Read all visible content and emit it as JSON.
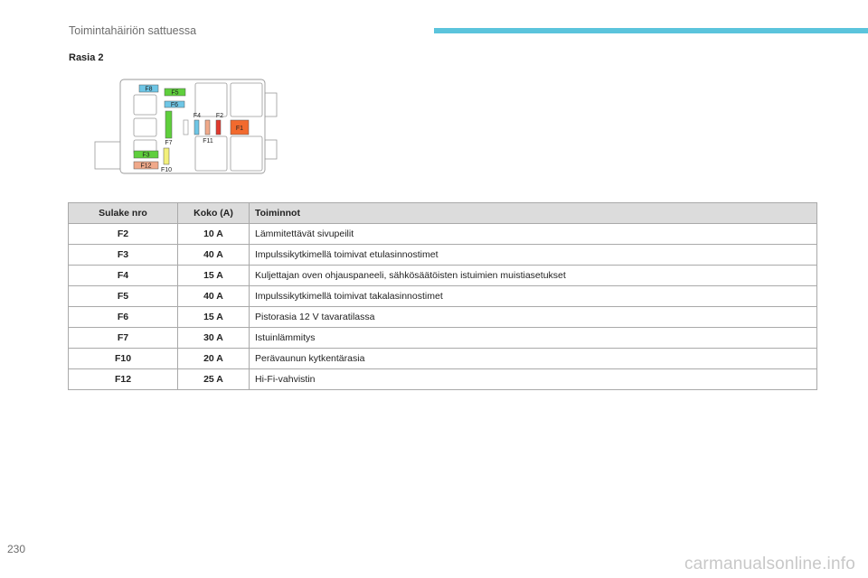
{
  "header": {
    "title": "Toimintahäiriön sattuessa",
    "accent_color": "#5bc4dc"
  },
  "section": {
    "title": "Rasia 2"
  },
  "diagram": {
    "labels": {
      "f8": "F8",
      "f5": "F5",
      "f6": "F6",
      "f4": "F4",
      "f2": "F2",
      "f1": "F1",
      "f11": "F11",
      "f7": "F7",
      "f3": "F3",
      "f12": "F12",
      "f10": "F10"
    },
    "colors": {
      "blue": "#6ec6e6",
      "green": "#5fcf3c",
      "orange": "#f26a2e",
      "salmon": "#f0a98a",
      "red": "#e03a2e",
      "yellow": "#f3f07a"
    }
  },
  "table": {
    "headers": {
      "fuse": "Sulake nro",
      "size": "Koko (A)",
      "functions": "Toiminnot"
    },
    "rows": [
      {
        "fuse": "F2",
        "size": "10 A",
        "func": "Lämmitettävät sivupeilit"
      },
      {
        "fuse": "F3",
        "size": "40 A",
        "func": "Impulssikytkimellä toimivat etulasinnostimet"
      },
      {
        "fuse": "F4",
        "size": "15 A",
        "func": "Kuljettajan oven ohjauspaneeli, sähkösäätöisten istuimien muistiasetukset"
      },
      {
        "fuse": "F5",
        "size": "40 A",
        "func": "Impulssikytkimellä toimivat takalasinnostimet"
      },
      {
        "fuse": "F6",
        "size": "15 A",
        "func": "Pistorasia 12 V tavaratilassa"
      },
      {
        "fuse": "F7",
        "size": "30 A",
        "func": "Istuinlämmitys"
      },
      {
        "fuse": "F10",
        "size": "20 A",
        "func": "Perävaunun kytkentärasia"
      },
      {
        "fuse": "F12",
        "size": "25 A",
        "func": "Hi-Fi-vahvistin"
      }
    ]
  },
  "footer": {
    "page_number": "230",
    "watermark": "carmanualsonline.info"
  }
}
